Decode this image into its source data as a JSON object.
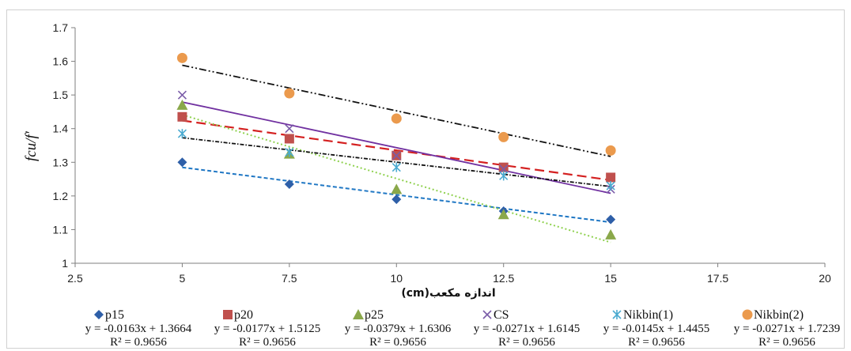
{
  "chart_data": {
    "type": "scatter",
    "xlabel": "اندازه مکعب(cm)",
    "ylabel": "fcu/f′",
    "xlim": [
      2.5,
      20
    ],
    "ylim": [
      1,
      1.7
    ],
    "x_ticks": [
      "2.5",
      "5",
      "7.5",
      "10",
      "12.5",
      "15",
      "17.5",
      "20"
    ],
    "y_ticks": [
      "1",
      "1.1",
      "1.2",
      "1.3",
      "1.4",
      "1.5",
      "1.6",
      "1.7"
    ],
    "grid": false,
    "legend_position": "bottom",
    "x": [
      5,
      7.5,
      10,
      12.5,
      15
    ],
    "series": [
      {
        "name": "p15",
        "marker": "diamond",
        "color": "#2e5fa8",
        "values": [
          1.3,
          1.235,
          1.19,
          1.155,
          1.13
        ],
        "trend": {
          "slope": -0.0163,
          "intercept": 1.3664,
          "color": "#1f77c4",
          "dash": "5,3",
          "width": 2
        },
        "equation": "y = -0.0163x + 1.3664",
        "r2": "R² = 0.9656"
      },
      {
        "name": "p20",
        "marker": "square",
        "color": "#c0504d",
        "values": [
          1.435,
          1.37,
          1.32,
          1.285,
          1.255
        ],
        "trend": {
          "slope": -0.0177,
          "intercept": 1.5125,
          "color": "#d42020",
          "dash": "12,6",
          "width": 2.2
        },
        "equation": "y = -0.0177x + 1.5125",
        "r2": "R² = 0.9656"
      },
      {
        "name": "p25",
        "marker": "triangle",
        "color": "#8aa84a",
        "values": [
          1.47,
          1.325,
          1.22,
          1.145,
          1.085
        ],
        "trend": {
          "slope": -0.0379,
          "intercept": 1.6306,
          "color": "#8fd14f",
          "dash": "2,3",
          "width": 2
        },
        "equation": "y = -0.0379x + 1.6306",
        "r2": "R² = 0.9656"
      },
      {
        "name": "CS",
        "marker": "x",
        "color": "#7a5ca8",
        "values": [
          1.5,
          1.4,
          1.32,
          1.28,
          1.22
        ],
        "trend": {
          "slope": -0.0271,
          "intercept": 1.6145,
          "color": "#7030a0",
          "dash": "",
          "width": 1.8
        },
        "equation": "y = -0.0271x + 1.6145",
        "r2": "R² = 0.9656"
      },
      {
        "name": "Nikbin(1)",
        "marker": "star",
        "color": "#4aaad0",
        "values": [
          1.385,
          1.33,
          1.285,
          1.26,
          1.23
        ],
        "trend": {
          "slope": -0.0145,
          "intercept": 1.4455,
          "color": "#111111",
          "dash": "5,2,1.5,2",
          "width": 1.8
        },
        "equation": "y = -0.0145x + 1.4455",
        "r2": "R² = 0.9656"
      },
      {
        "name": "Nikbin(2)",
        "marker": "circle",
        "color": "#eb9a4d",
        "values": [
          1.61,
          1.505,
          1.43,
          1.375,
          1.335
        ],
        "trend": {
          "slope": -0.0271,
          "intercept": 1.7239,
          "color": "#111111",
          "dash": "9,3,2,3,2,3",
          "width": 1.8
        },
        "equation": "y = -0.0271x + 1.7239",
        "r2": "R² = 0.9656"
      }
    ]
  }
}
